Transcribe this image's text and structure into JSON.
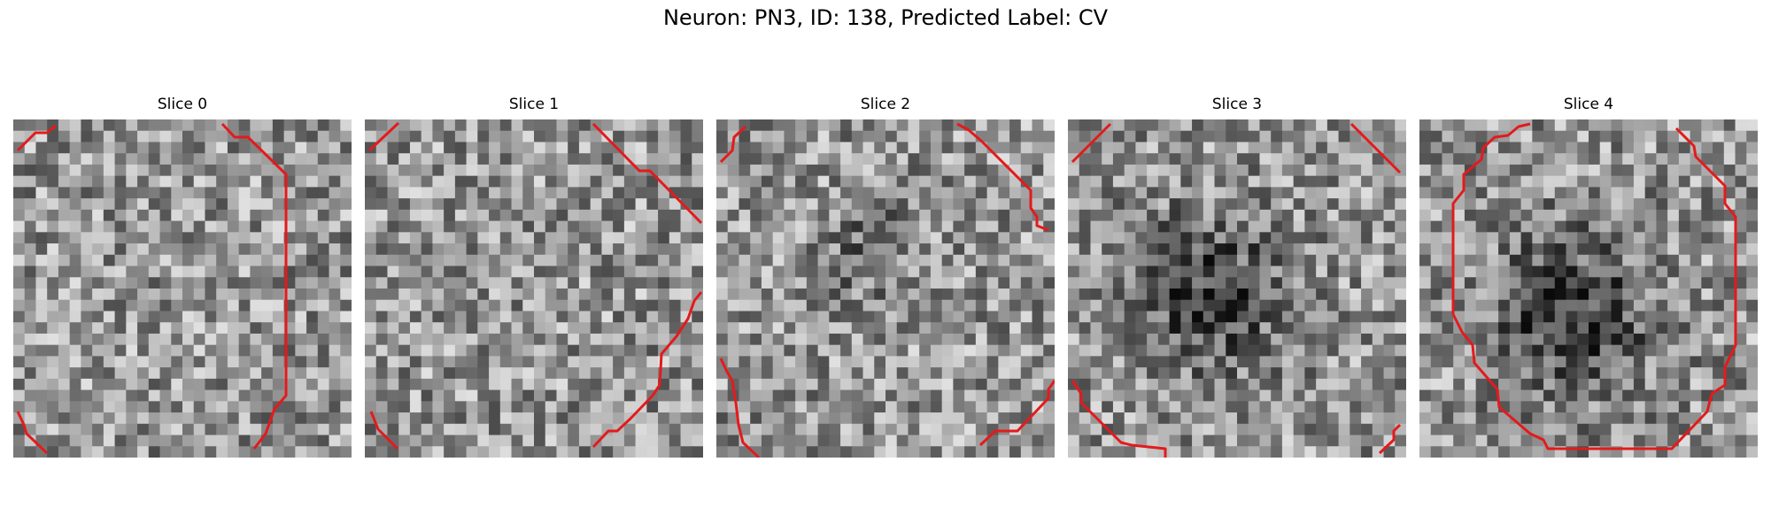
{
  "figure": {
    "title": "Neuron: PN3, ID: 138, Predicted Label: CV",
    "contour_color": "#e41a1c"
  },
  "panels": [
    {
      "label": "Slice 0",
      "seed": 11,
      "blob": null
    },
    {
      "label": "Slice 1",
      "seed": 23,
      "blob": null
    },
    {
      "label": "Slice 2",
      "seed": 37,
      "blob": {
        "cx": 13,
        "cy": 11,
        "r": 3,
        "strength": 45
      }
    },
    {
      "label": "Slice 3",
      "seed": 53,
      "blob": {
        "cx": 12,
        "cy": 15,
        "r": 5,
        "strength": 85
      }
    },
    {
      "label": "Slice 4",
      "seed": 71,
      "blob": {
        "cx": 13,
        "cy": 17,
        "r": 5,
        "strength": 95
      }
    }
  ]
}
